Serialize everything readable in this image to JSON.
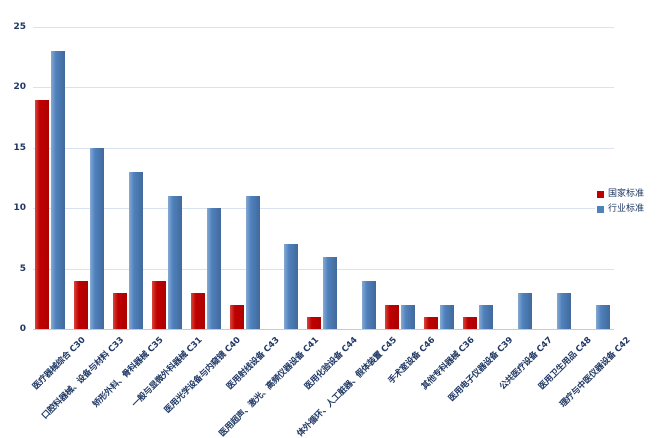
{
  "chart_data": {
    "type": "bar",
    "title": "",
    "categories": [
      "医疗器械综合 C30",
      "口腔科器械、设备与材料 C33",
      "矫形外科、骨科器械 C35",
      "一般与显微外科器械 C31",
      "医用光学设备与内窥镜 C40",
      "医用射线设备 C43",
      "医用超声、激光、高频仪器设备 C41",
      "医用化验设备 C44",
      "体外循环、人工脏器、假体装置 C45",
      "手术室设备 C46",
      "其他专科器械 C36",
      "医用电子仪器设备 C39",
      "公共医疗设备 C47",
      "医用卫生用品 C48",
      "理疗与中医仪器设备 C42"
    ],
    "series": [
      {
        "name": "国家标准",
        "color": "#C00000",
        "values": [
          19,
          4,
          3,
          4,
          3,
          2,
          0,
          1,
          0,
          2,
          1,
          1,
          0,
          0,
          0
        ]
      },
      {
        "name": "行业标准",
        "color": "#4F81BD",
        "values": [
          23,
          15,
          13,
          11,
          10,
          11,
          7,
          6,
          4,
          2,
          2,
          2,
          3,
          3,
          2
        ]
      }
    ],
    "ylim": [
      0,
      25
    ],
    "yticks": [
      0,
      5,
      10,
      15,
      20,
      25
    ],
    "grid": true,
    "legend_position": "right",
    "axis_label_color": "#1F3864",
    "gridline_color": "#D9E2F0"
  }
}
